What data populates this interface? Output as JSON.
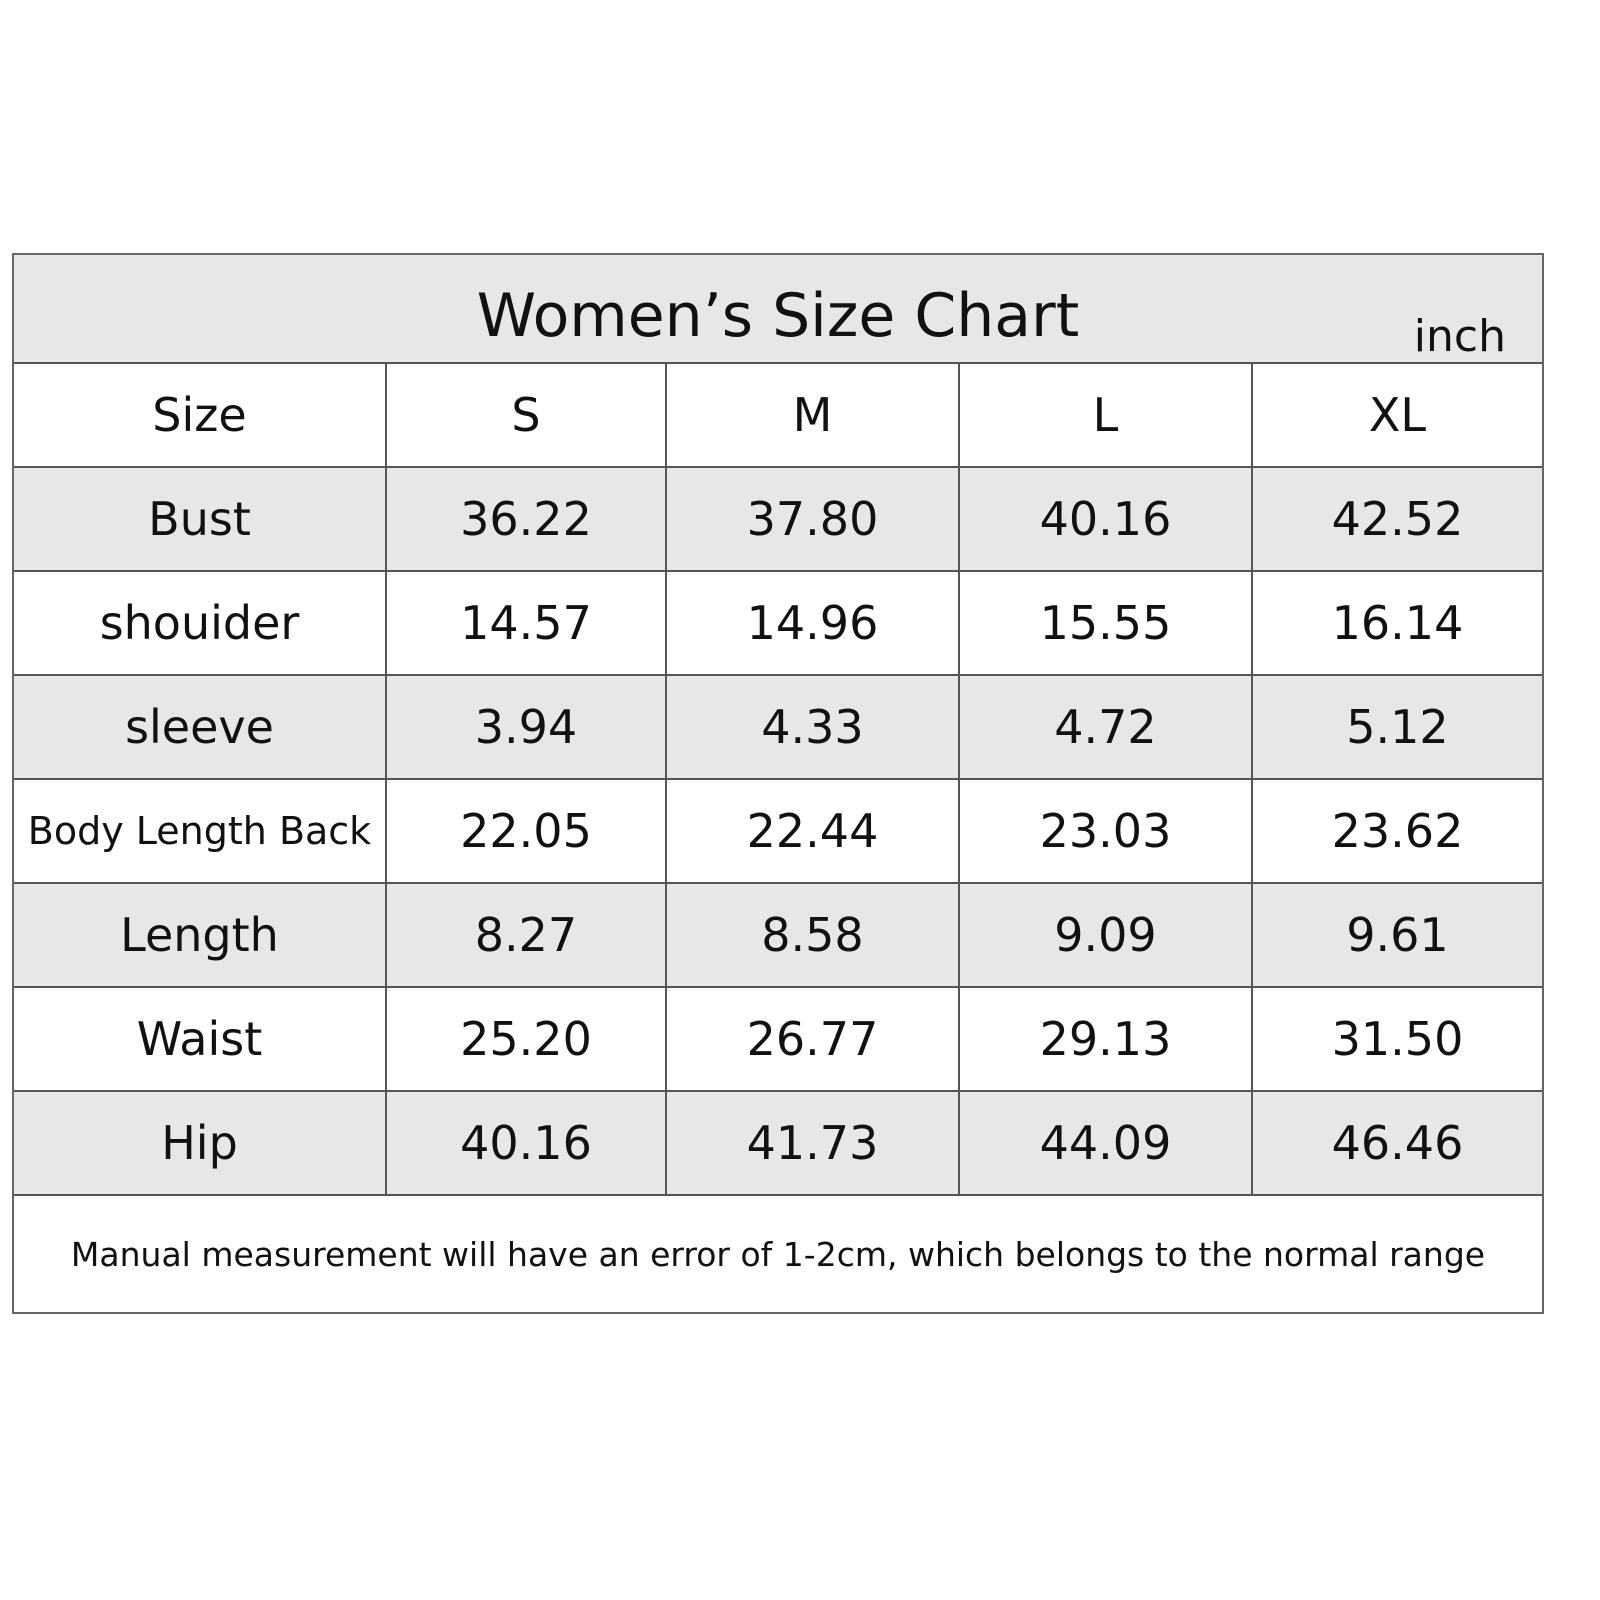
{
  "table": {
    "title": "Women’s Size Chart",
    "unit": "inch",
    "header": [
      "Size",
      "S",
      "M",
      "L",
      "XL"
    ],
    "rows": [
      [
        "Bust",
        "36.22",
        "37.80",
        "40.16",
        "42.52"
      ],
      [
        "shouider",
        "14.57",
        "14.96",
        "15.55",
        "16.14"
      ],
      [
        "sleeve",
        "3.94",
        "4.33",
        "4.72",
        "5.12"
      ],
      [
        "Body Length Back",
        "22.05",
        "22.44",
        "23.03",
        "23.62"
      ],
      [
        "Length",
        "8.27",
        "8.58",
        "9.09",
        "9.61"
      ],
      [
        "Waist",
        "25.20",
        "26.77",
        "29.13",
        "31.50"
      ],
      [
        "Hip",
        "40.16",
        "41.73",
        "44.09",
        "46.46"
      ]
    ],
    "note": "Manual measurement will have an error of 1-2cm, which belongs to the normal range"
  }
}
